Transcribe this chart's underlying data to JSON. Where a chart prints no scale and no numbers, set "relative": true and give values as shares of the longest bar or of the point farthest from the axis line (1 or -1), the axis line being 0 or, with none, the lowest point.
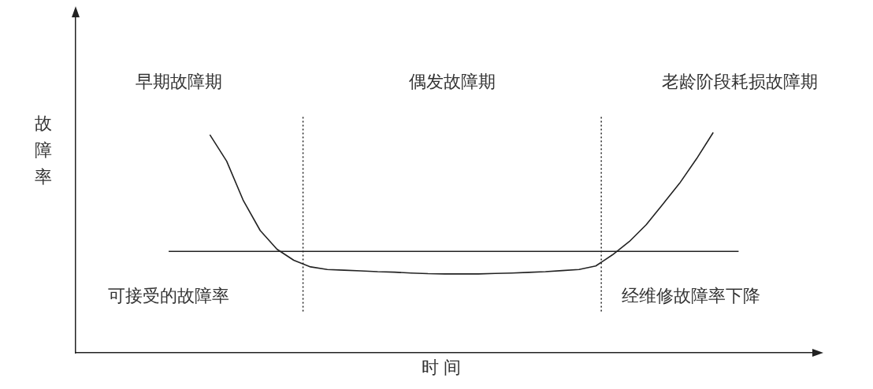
{
  "chart_data": {
    "type": "line",
    "relative": true,
    "xlabel": "时 间",
    "ylabel": "故障率",
    "grid": false,
    "legend": false,
    "marker": "none",
    "line_style": "solid",
    "color": "#222222",
    "categories": [
      null,
      null,
      null,
      null,
      null,
      null,
      null,
      null,
      null,
      null,
      null,
      null,
      null,
      null,
      null,
      null,
      null,
      null,
      null,
      null,
      null,
      null,
      null,
      null,
      null,
      null,
      null,
      null,
      null,
      null,
      null,
      null,
      null,
      null,
      null,
      null,
      null,
      null,
      null,
      null,
      null,
      null,
      null,
      null,
      null
    ],
    "values": [
      null,
      null,
      null,
      null,
      null,
      null,
      null,
      null,
      0.99,
      0.87,
      0.69,
      0.555,
      0.47,
      0.42,
      0.39,
      0.378,
      0.375,
      0.372,
      0.368,
      0.366,
      0.362,
      0.359,
      0.358,
      0.358,
      0.358,
      0.36,
      0.362,
      0.365,
      0.368,
      0.373,
      0.378,
      0.394,
      0.445,
      0.505,
      0.581,
      0.675,
      0.77,
      0.88,
      1.0,
      null,
      null,
      null,
      null,
      null,
      null
    ],
    "ref_lines": [
      {
        "axis": "y",
        "value": 0.46,
        "line_style": "solid",
        "color": "#222222"
      }
    ],
    "annotations": [
      "早期故障期",
      "偶发故障期",
      "老龄阶段耗损故障期",
      "可接受的故障率",
      "经维修故障率下降"
    ]
  }
}
